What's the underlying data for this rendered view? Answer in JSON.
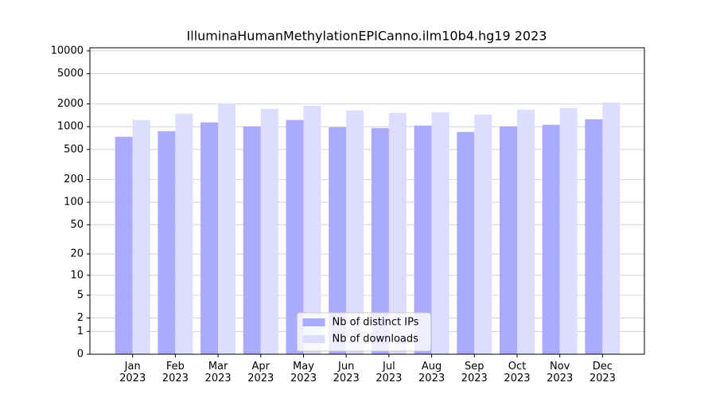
{
  "chart_data": {
    "type": "bar",
    "title": "IlluminaHumanMethylationEPICanno.ilm10b4.hg19 2023",
    "categories": [
      "Jan 2023",
      "Feb 2023",
      "Mar 2023",
      "Apr 2023",
      "May 2023",
      "Jun 2023",
      "Jul 2023",
      "Aug 2023",
      "Sep 2023",
      "Oct 2023",
      "Nov 2023",
      "Dec 2023"
    ],
    "series": [
      {
        "name": "Nb of distinct IPs",
        "color": "#aaaaff",
        "values": [
          737,
          873,
          1140,
          1010,
          1225,
          985,
          960,
          1035,
          852,
          1010,
          1060,
          1255
        ]
      },
      {
        "name": "Nb of downloads",
        "color": "#ddddff",
        "values": [
          1225,
          1487,
          2035,
          1720,
          1890,
          1637,
          1523,
          1560,
          1451,
          1678,
          1762,
          2085
        ]
      }
    ],
    "y_scale": "log1p",
    "ylim": [
      0,
      11000
    ],
    "yticks": [
      0,
      1,
      2,
      5,
      10,
      20,
      50,
      100,
      200,
      500,
      1000,
      2000,
      5000,
      10000
    ],
    "grid": true,
    "legend": "lower center"
  }
}
